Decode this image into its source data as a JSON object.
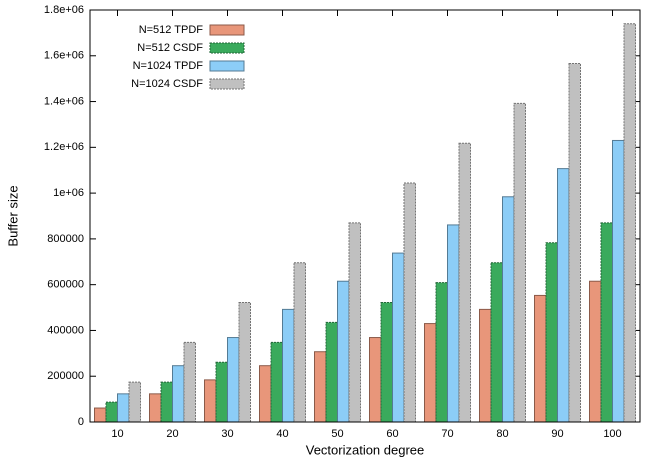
{
  "chart_data": {
    "type": "bar",
    "x_label": "Vectorization degree",
    "y_label": "Buffer size",
    "categories": [
      "10",
      "20",
      "30",
      "40",
      "50",
      "60",
      "70",
      "80",
      "90",
      "100"
    ],
    "series": [
      {
        "name": "N=512 TPDF",
        "color": "#e8967a",
        "values": [
          61000,
          123000,
          184000,
          246000,
          307000,
          369000,
          430000,
          492000,
          553000,
          615000
        ]
      },
      {
        "name": "N=512 CSDF",
        "color": "#3aaa5c",
        "values": [
          87000,
          174000,
          261000,
          348000,
          435000,
          522000,
          609000,
          696000,
          783000,
          870000
        ]
      },
      {
        "name": "N=1024 TPDF",
        "color": "#8ccdf7",
        "values": [
          123000,
          246000,
          369000,
          492000,
          615000,
          738000,
          861000,
          984000,
          1107000,
          1230000
        ]
      },
      {
        "name": "N=1024 CSDF",
        "color": "#c0c0c0",
        "values": [
          174000,
          348000,
          522000,
          696000,
          870000,
          1044000,
          1218000,
          1392000,
          1566000,
          1740000
        ]
      }
    ],
    "ylim": [
      0,
      1800000
    ],
    "yticks": [
      0,
      200000,
      400000,
      600000,
      800000,
      {
        "value": 1000000,
        "label": "1e+06"
      },
      {
        "value": 1200000,
        "label": "1.2e+06"
      },
      {
        "value": 1400000,
        "label": "1.4e+06"
      },
      {
        "value": 1600000,
        "label": "1.6e+06"
      },
      {
        "value": 1800000,
        "label": "1.8e+06"
      }
    ],
    "legend": "top-left"
  }
}
